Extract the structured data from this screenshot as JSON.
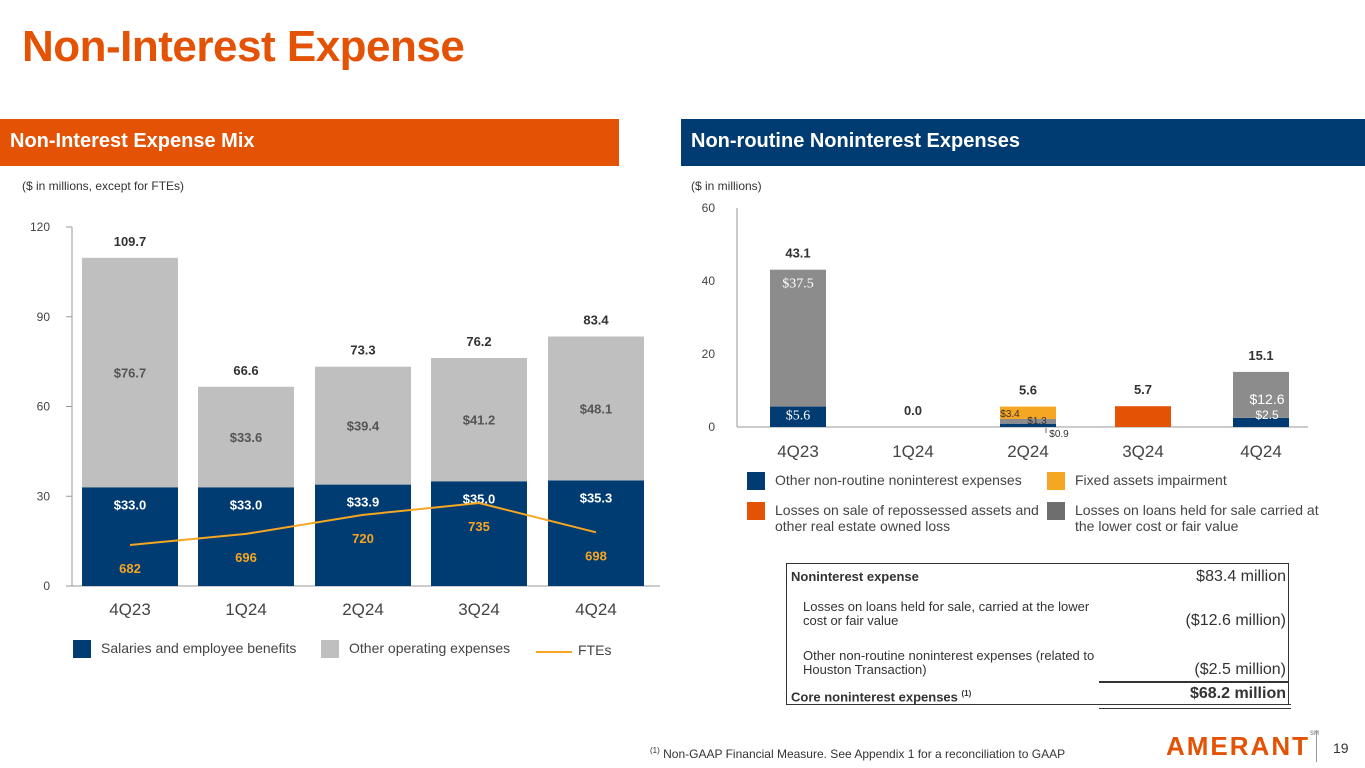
{
  "title": "Non-Interest Expense",
  "left_panel": {
    "header": "Non-Interest Expense Mix",
    "units": "($ in millions, except for FTEs)"
  },
  "right_panel": {
    "header": "Non-routine Noninterest Expenses",
    "units": "($ in millions)"
  },
  "colors": {
    "orange": "#E35205",
    "navy": "#003B71",
    "lightgray": "#BFBFBF",
    "gray": "#8C8C8C",
    "darkgray": "#6E6E6E",
    "gold": "#F5A623"
  },
  "chart_data": [
    {
      "type": "bar",
      "stacked": true,
      "categories": [
        "4Q23",
        "1Q24",
        "2Q24",
        "3Q24",
        "4Q24"
      ],
      "ylim": [
        0,
        120
      ],
      "yticks": [
        0,
        30,
        60,
        90,
        120
      ],
      "series": [
        {
          "name": "Salaries and employee benefits",
          "values": [
            33.0,
            33.0,
            33.9,
            35.0,
            35.3
          ],
          "labels": [
            "$33.0",
            "$33.0",
            "$33.9",
            "$35.0",
            "$35.3"
          ]
        },
        {
          "name": "Other operating expenses",
          "values": [
            76.7,
            33.6,
            39.4,
            41.2,
            48.1
          ],
          "labels": [
            "$76.7",
            "$33.6",
            "$39.4",
            "$41.2",
            "$48.1"
          ]
        }
      ],
      "totals": [
        "109.7",
        "66.6",
        "73.3",
        "76.2",
        "83.4"
      ],
      "line_series": {
        "name": "FTEs",
        "values": [
          682,
          696,
          720,
          735,
          698
        ],
        "labels": [
          "682",
          "696",
          "720",
          "735",
          "698"
        ]
      },
      "legend": [
        "Salaries and employee benefits",
        "Other operating expenses",
        "FTEs"
      ]
    },
    {
      "type": "bar",
      "stacked": true,
      "categories": [
        "4Q23",
        "1Q24",
        "2Q24",
        "3Q24",
        "4Q24"
      ],
      "ylim": [
        0,
        60
      ],
      "yticks": [
        0,
        20,
        40,
        60
      ],
      "series": [
        {
          "name": "Other non-routine noninterest expenses",
          "values": [
            5.6,
            0,
            0.9,
            0,
            2.5
          ],
          "labels": [
            "$5.6",
            "",
            "$0.9",
            "",
            "$2.5"
          ]
        },
        {
          "name": "Losses on loans held for sale carried at the lower cost or fair value",
          "values": [
            37.5,
            0,
            1.3,
            0,
            12.6
          ],
          "labels": [
            "$37.5",
            "",
            "$1.3",
            "",
            "$12.6"
          ]
        },
        {
          "name": "Fixed assets impairment",
          "values": [
            0,
            0,
            3.4,
            0,
            0
          ],
          "labels": [
            "",
            "",
            "$3.4",
            "",
            ""
          ]
        },
        {
          "name": "Losses on sale of repossessed assets and other real estate owned loss",
          "values": [
            0,
            0,
            0,
            5.7,
            0
          ],
          "labels": [
            "",
            "",
            "",
            "",
            ""
          ]
        }
      ],
      "totals": [
        "43.1",
        "0.0",
        "5.6",
        "5.7",
        "15.1"
      ],
      "legend": [
        "Other non-routine noninterest expenses",
        "Fixed assets impairment",
        "Losses on sale of repossessed assets and other real estate owned loss",
        "Losses on loans held for sale carried at the lower cost or fair value"
      ]
    }
  ],
  "legend_left": {
    "salaries": "Salaries and employee benefits",
    "other": "Other operating expenses",
    "ftes": "FTEs"
  },
  "legend_right": {
    "other_nonroutine": "Other non-routine noninterest expenses",
    "fixed_assets": "Fixed assets impairment",
    "repossessed": "Losses on sale of repossessed assets and other real estate owned loss",
    "loans_hfs": "Losses on loans held for sale carried at the lower cost or fair value"
  },
  "table": {
    "rows": [
      {
        "label": "Noninterest expense",
        "value": "$83.4 million"
      },
      {
        "label": "Losses on loans held for sale, carried at the lower cost or fair value",
        "value": "($12.6 million)"
      },
      {
        "label": "Other non-routine noninterest expenses (related to Houston Transaction)",
        "value": "($2.5 million)"
      },
      {
        "label": "Core noninterest expenses",
        "value": "$68.2 million"
      }
    ],
    "footnote_marker": "(1)"
  },
  "footnote": {
    "marker": "(1)",
    "text": "Non-GAAP Financial Measure. See Appendix 1 for a reconciliation to GAAP"
  },
  "logo": {
    "text": "AMERANT",
    "mark": "SM"
  },
  "page_number": "19"
}
